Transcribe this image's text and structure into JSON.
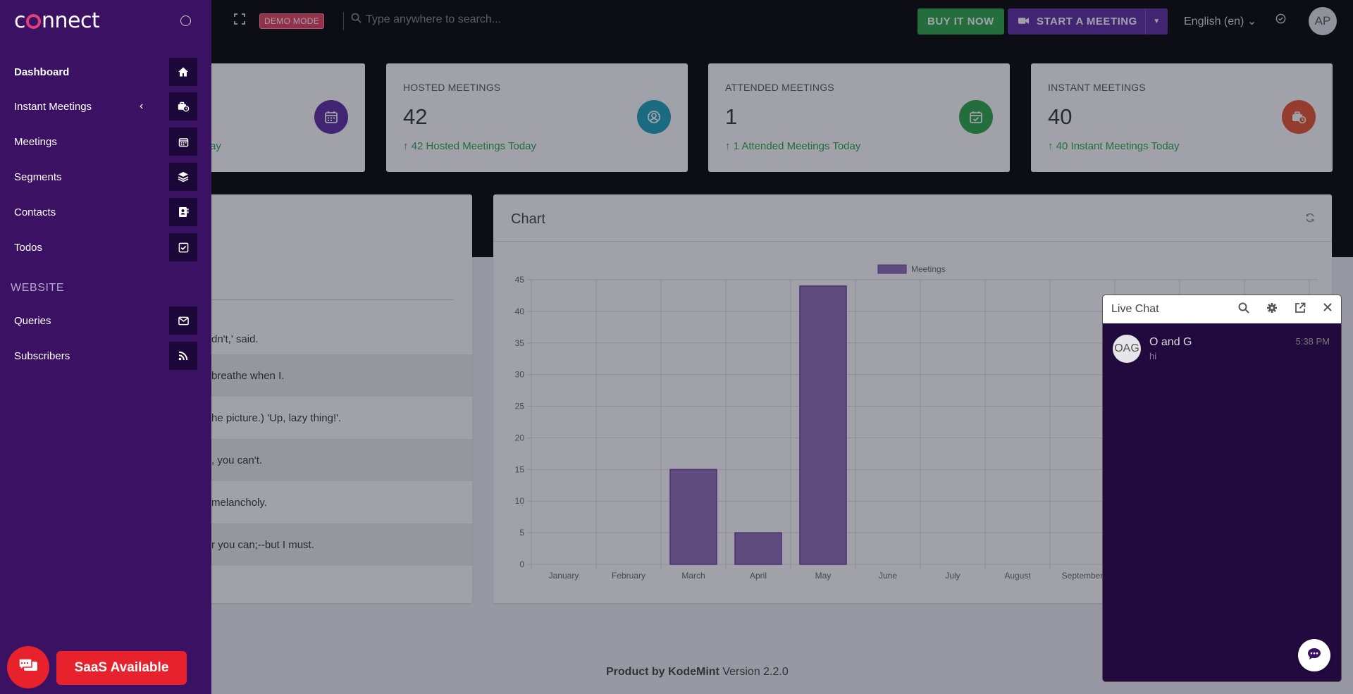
{
  "topbar": {
    "demo_badge": "DEMO MODE",
    "search_placeholder": "Type anywhere to search...",
    "buy_label": "BUY IT NOW",
    "meeting_label": "START A MEETING",
    "language": "English (en)",
    "avatar_initials": "AP"
  },
  "stats": [
    {
      "label": "",
      "value": "",
      "trend": "ay",
      "color": "#5b2aa0",
      "icon": "calendar-icon"
    },
    {
      "label": "HOSTED MEETINGS",
      "value": "42",
      "trend": "42 Hosted Meetings Today",
      "color": "#17a2b8",
      "icon": "user-circle-icon"
    },
    {
      "label": "ATTENDED MEETINGS",
      "value": "1",
      "trend": "1 Attended Meetings Today",
      "color": "#28a745",
      "icon": "calendar-check-icon"
    },
    {
      "label": "INSTANT MEETINGS",
      "value": "40",
      "trend": "40 Instant Meetings Today",
      "color": "#e8512c",
      "icon": "instant-meeting-icon"
    }
  ],
  "table_rows": [
    "dn't,' said.",
    "breathe when I.",
    "he picture.) 'Up, lazy thing!'.",
    ", you can't.",
    "melancholy.",
    "r you can;--but I must."
  ],
  "chart_card": {
    "title": "Chart"
  },
  "chart_data": {
    "type": "bar",
    "title": "",
    "legend": [
      "Meetings"
    ],
    "legend_position": "top",
    "categories": [
      "January",
      "February",
      "March",
      "April",
      "May",
      "June",
      "July",
      "August",
      "September"
    ],
    "series": [
      {
        "name": "Meetings",
        "values": [
          0,
          0,
          15,
          5,
          44,
          0,
          0,
          0,
          0
        ]
      }
    ],
    "ylim": [
      0,
      45
    ],
    "yticks": [
      0,
      5,
      10,
      15,
      20,
      25,
      30,
      35,
      40,
      45
    ],
    "grid": true,
    "color": "#8e6bb5"
  },
  "sidebar": {
    "brand": "connect",
    "items": [
      {
        "label": "Dashboard",
        "icon": "home-icon",
        "active": true
      },
      {
        "label": "Instant Meetings",
        "icon": "instant-meeting-icon",
        "has_chevron": true
      },
      {
        "label": "Meetings",
        "icon": "calendar-icon"
      },
      {
        "label": "Segments",
        "icon": "layers-icon"
      },
      {
        "label": "Contacts",
        "icon": "contact-book-icon"
      },
      {
        "label": "Todos",
        "icon": "check-square-icon"
      }
    ],
    "section_website": "WEBSITE",
    "website_items": [
      {
        "label": "Queries",
        "icon": "envelope-icon"
      },
      {
        "label": "Subscribers",
        "icon": "rss-icon"
      }
    ],
    "saas_label": "SaaS Available"
  },
  "footer": {
    "brand": "Product by KodeMint",
    "version": "Version 2.2.0"
  },
  "livechat": {
    "title": "Live Chat",
    "conversations": [
      {
        "initials": "OAG",
        "name": "O and G",
        "message": "hi",
        "time": "5:38 PM"
      }
    ]
  }
}
